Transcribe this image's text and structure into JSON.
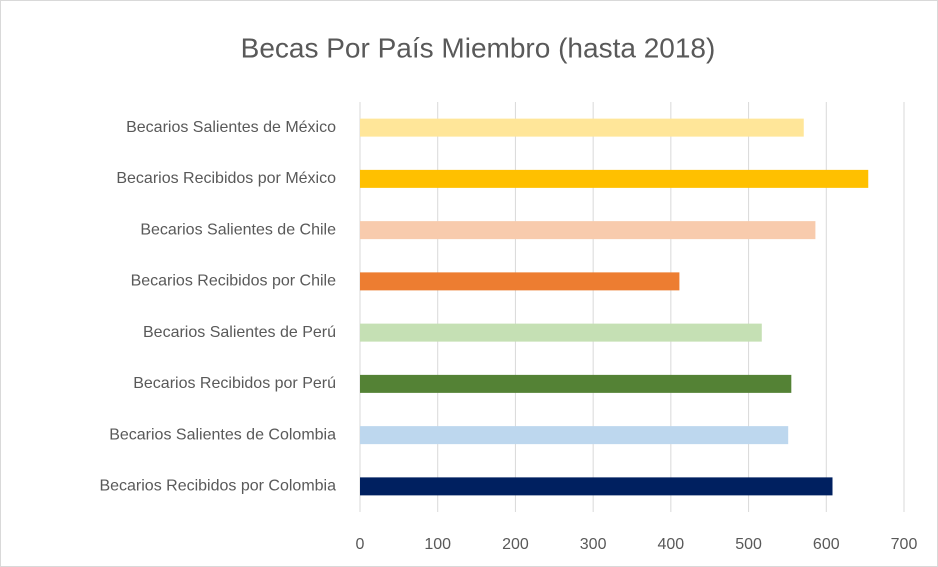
{
  "chart_data": {
    "type": "barh",
    "title": "Becas Por País Miembro (hasta 2018)",
    "categories": [
      "Becarios Salientes de México",
      "Becarios Recibidos por México",
      "Becarios Salientes de Chile",
      "Becarios Recibidos por Chile",
      "Becarios Salientes de Perú",
      "Becarios Recibidos por Perú",
      "Becarios Salientes de Colombia",
      "Becarios Recibidos por Colombia"
    ],
    "values": [
      571,
      654,
      586,
      411,
      517,
      555,
      551,
      608
    ],
    "colors": [
      "#ffe699",
      "#ffc000",
      "#f8cbad",
      "#ed7d31",
      "#c5e0b4",
      "#548235",
      "#bdd7ee",
      "#002060"
    ],
    "xlim": [
      0,
      700
    ],
    "xticks": [
      0,
      100,
      200,
      300,
      400,
      500,
      600,
      700
    ],
    "grid": true
  }
}
